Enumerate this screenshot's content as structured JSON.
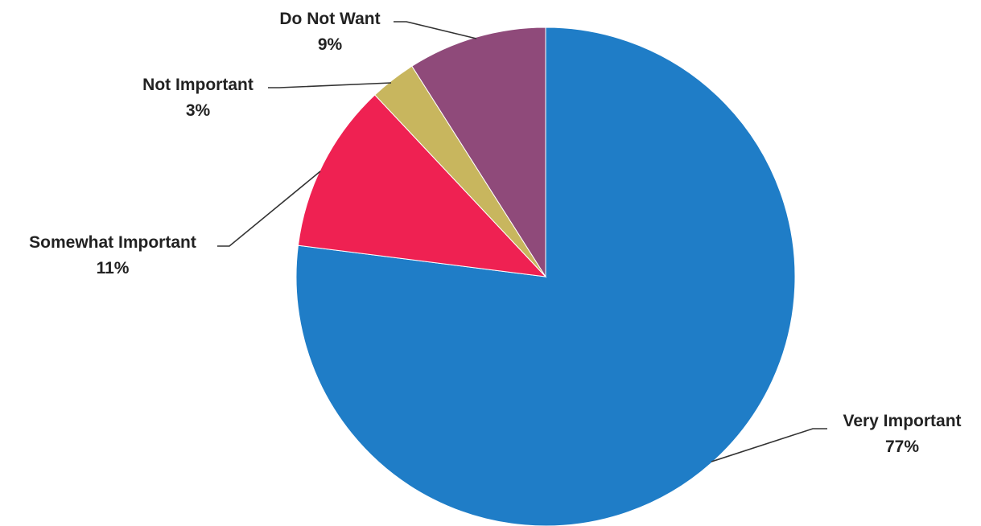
{
  "chart_data": {
    "type": "pie",
    "title": "",
    "categories": [
      "Very Important",
      "Somewhat Important",
      "Not Important",
      "Do Not Want"
    ],
    "values": [
      77,
      11,
      3,
      9
    ],
    "value_labels": [
      "77%",
      "11%",
      "3%",
      "9%"
    ],
    "colors": [
      "#1f7dc7",
      "#ef2152",
      "#c8b65e",
      "#8f4a7a"
    ],
    "start_angle_deg": 0,
    "direction": "clockwise",
    "legend": "none",
    "data_labels": "outside with leader lines"
  }
}
